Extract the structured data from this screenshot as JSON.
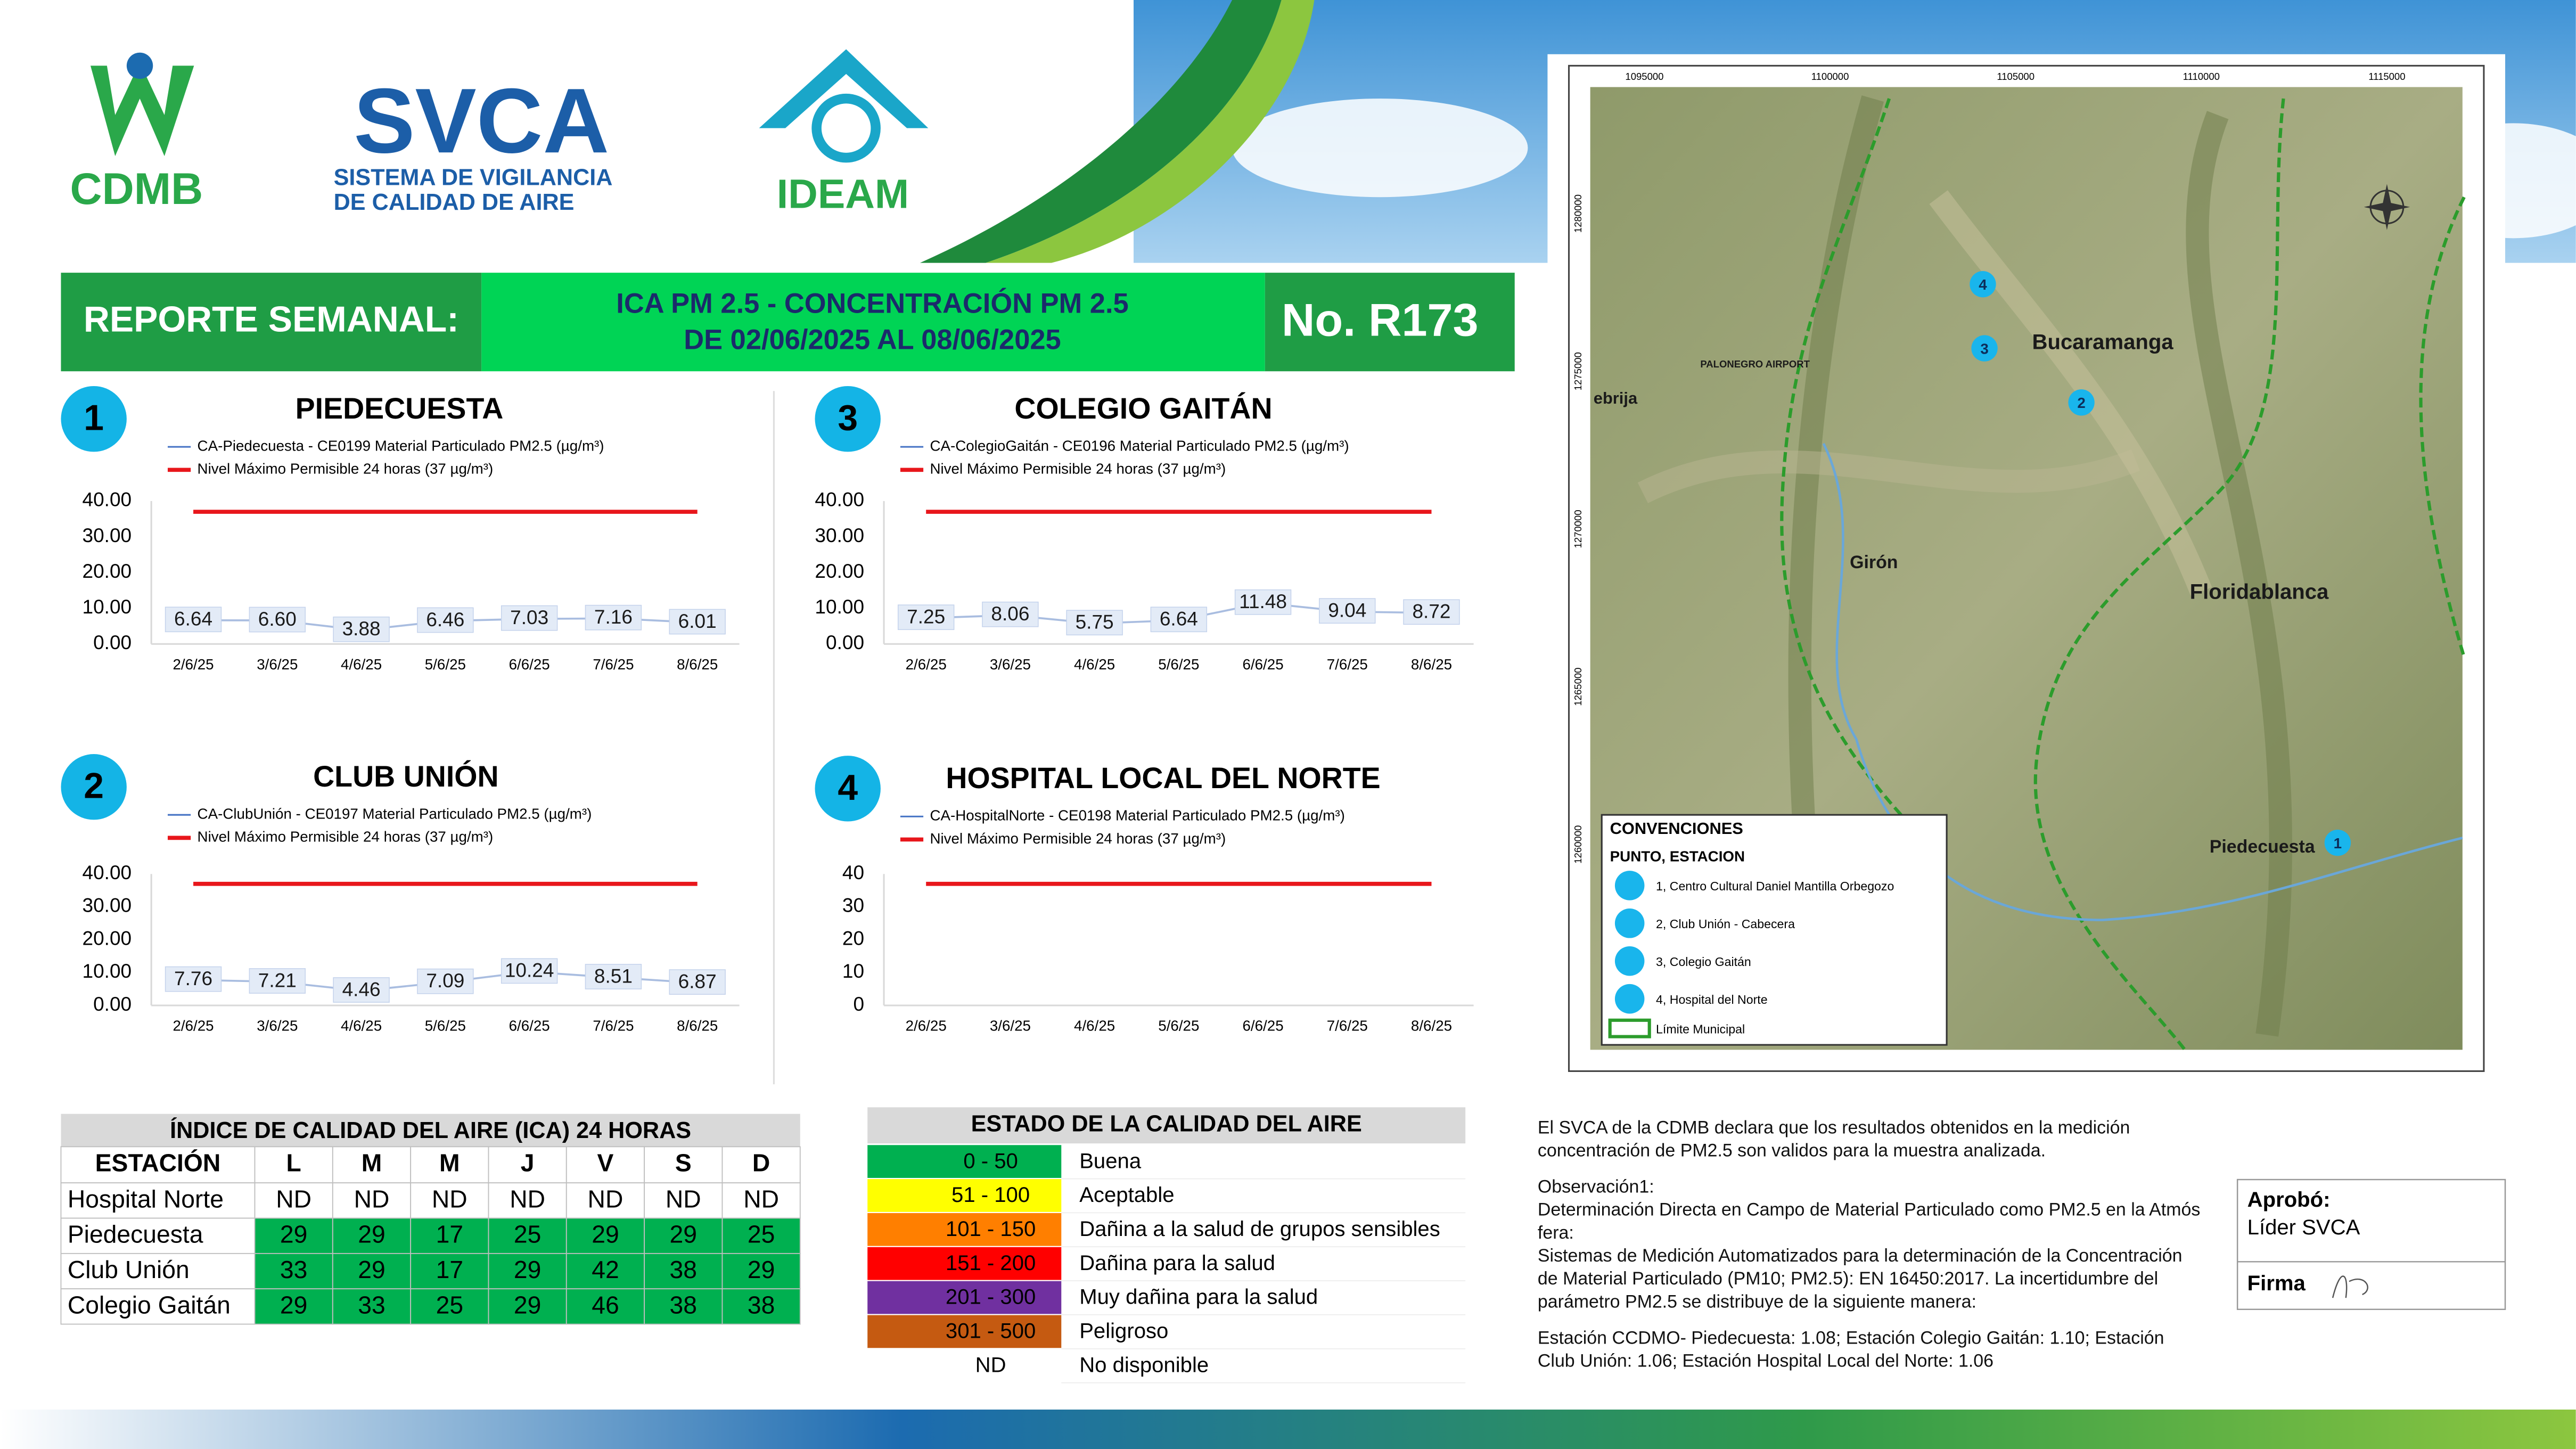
{
  "header": {
    "cdmb": "CDMB",
    "svca": "SVCA",
    "svca_line1": "SISTEMA DE VIGILANCIA",
    "svca_line2": "DE CALIDAD DE AIRE",
    "ideam": "IDEAM"
  },
  "title_bar": {
    "left": "REPORTE SEMANAL:",
    "center_line1": "ICA PM 2.5 - CONCENTRACIÓN PM 2.5",
    "center_line2": "DE 02/06/2025 AL 08/06/2025",
    "report_number": "No. R173"
  },
  "chart_data": [
    {
      "type": "line",
      "number": "1",
      "title": "PIEDECUESTA",
      "categories": [
        "2/6/25",
        "3/6/25",
        "4/6/25",
        "5/6/25",
        "6/6/25",
        "7/6/25",
        "8/6/25"
      ],
      "series": [
        {
          "name": "CA-Piedecuesta - CE0199 Material Particulado PM2.5 (µg/m³)",
          "color": "#4472c4",
          "values": [
            6.64,
            6.6,
            3.88,
            6.46,
            7.03,
            7.16,
            6.01
          ],
          "value_labels": [
            "6.64",
            "6.60",
            "3.88",
            "6.46",
            "7.03",
            "7.16",
            "6.01"
          ]
        },
        {
          "name": "Nivel Máximo Permisible 24 horas (37 µg/m³)",
          "color": "#e8161b",
          "values": [
            37,
            37,
            37,
            37,
            37,
            37,
            37
          ]
        }
      ],
      "ylim": [
        0,
        40
      ],
      "yticks": [
        {
          "value": 0,
          "label": "0.00"
        },
        {
          "value": 10,
          "label": "10.00"
        },
        {
          "value": 20,
          "label": "20.00"
        },
        {
          "value": 30,
          "label": "30.00"
        },
        {
          "value": 40,
          "label": "40.00"
        }
      ],
      "grid": false
    },
    {
      "type": "line",
      "number": "2",
      "title": "CLUB UNIÓN",
      "categories": [
        "2/6/25",
        "3/6/25",
        "4/6/25",
        "5/6/25",
        "6/6/25",
        "7/6/25",
        "8/6/25"
      ],
      "series": [
        {
          "name": "CA-ClubUnión - CE0197 Material Particulado PM2.5 (µg/m³)",
          "color": "#4472c4",
          "values": [
            7.76,
            7.21,
            4.46,
            7.09,
            10.24,
            8.51,
            6.87
          ],
          "value_labels": [
            "7.76",
            "7.21",
            "4.46",
            "7.09",
            "10.24",
            "8.51",
            "6.87"
          ]
        },
        {
          "name": "Nivel Máximo Permisible 24 horas (37 µg/m³)",
          "color": "#e8161b",
          "values": [
            37,
            37,
            37,
            37,
            37,
            37,
            37
          ]
        }
      ],
      "ylim": [
        0,
        40
      ],
      "yticks": [
        {
          "value": 0,
          "label": "0.00"
        },
        {
          "value": 10,
          "label": "10.00"
        },
        {
          "value": 20,
          "label": "20.00"
        },
        {
          "value": 30,
          "label": "30.00"
        },
        {
          "value": 40,
          "label": "40.00"
        }
      ],
      "grid": false
    },
    {
      "type": "line",
      "number": "3",
      "title": "COLEGIO GAITÁN",
      "categories": [
        "2/6/25",
        "3/6/25",
        "4/6/25",
        "5/6/25",
        "6/6/25",
        "7/6/25",
        "8/6/25"
      ],
      "series": [
        {
          "name": "CA-ColegioGaitán  - CE0196 Material Particulado PM2.5 (µg/m³)",
          "color": "#4472c4",
          "values": [
            7.25,
            8.06,
            5.75,
            6.64,
            11.48,
            9.04,
            8.72
          ],
          "value_labels": [
            "7.25",
            "8.06",
            "5.75",
            "6.64",
            "11.48",
            "9.04",
            "8.72"
          ]
        },
        {
          "name": "Nivel Máximo Permisible 24 horas (37 µg/m³)",
          "color": "#e8161b",
          "values": [
            37,
            37,
            37,
            37,
            37,
            37,
            37
          ]
        }
      ],
      "ylim": [
        0,
        40
      ],
      "yticks": [
        {
          "value": 0,
          "label": "0.00"
        },
        {
          "value": 10,
          "label": "10.00"
        },
        {
          "value": 20,
          "label": "20.00"
        },
        {
          "value": 30,
          "label": "30.00"
        },
        {
          "value": 40,
          "label": "40.00"
        }
      ],
      "grid": false
    },
    {
      "type": "line",
      "number": "4",
      "title": "HOSPITAL LOCAL DEL NORTE",
      "categories": [
        "2/6/25",
        "3/6/25",
        "4/6/25",
        "5/6/25",
        "6/6/25",
        "7/6/25",
        "8/6/25"
      ],
      "series": [
        {
          "name": "CA-HospitalNorte - CE0198 Material Particulado PM2.5 (µg/m³)",
          "color": "#4472c4",
          "values": [
            null,
            null,
            null,
            null,
            null,
            null,
            null
          ]
        },
        {
          "name": "Nivel Máximo Permisible 24 horas (37 µg/m³)",
          "color": "#e8161b",
          "values": [
            37,
            37,
            37,
            37,
            37,
            37,
            37
          ]
        }
      ],
      "ylim": [
        0,
        40
      ],
      "yticks": [
        0,
        10,
        20,
        30,
        40
      ],
      "grid": false
    }
  ],
  "ica_table": {
    "title": "ÍNDICE DE CALIDAD DEL AIRE (ICA) 24 HORAS",
    "columns": [
      "ESTACIÓN",
      "L",
      "M",
      "M",
      "J",
      "V",
      "S",
      "D"
    ],
    "rows": [
      [
        "Hospital Norte",
        "ND",
        "ND",
        "ND",
        "ND",
        "ND",
        "ND",
        "ND"
      ],
      [
        "Piedecuesta",
        29,
        29,
        17,
        25,
        29,
        29,
        25
      ],
      [
        "Club Unión",
        33,
        29,
        17,
        29,
        42,
        38,
        29
      ],
      [
        "Colegio Gaitán",
        29,
        33,
        25,
        29,
        46,
        38,
        38
      ]
    ]
  },
  "status_table": {
    "title": "ESTADO DE LA CALIDAD DEL AIRE",
    "rows": [
      {
        "range": "0 - 50",
        "label": "Buena",
        "color": "#00b050"
      },
      {
        "range": "51 - 100",
        "label": "Aceptable",
        "color": "#ffff00"
      },
      {
        "range": "101 - 150",
        "label": "Dañina a la salud de grupos sensibles",
        "color": "#ff7f00"
      },
      {
        "range": "151 - 200",
        "label": "Dañina para la salud",
        "color": "#ff0000"
      },
      {
        "range": "201 - 300",
        "label": "Muy dañina para la salud",
        "color": "#7030a0"
      },
      {
        "range": "301 - 500",
        "label": "Peligroso",
        "color": "#c55a11"
      },
      {
        "range": "ND",
        "label": "No disponible"
      }
    ]
  },
  "notes": [
    "El SVCA  de la CDMB declara que los resultados obtenidos en la medición",
    "concentración de PM2.5 son validos para la muestra  analizada.",
    "Observación1:",
    "Determinación Directa en Campo de Material Particulado como PM2.5 en la Atmós",
    "fera:",
    "Sistemas de Medición Automatizados para la  determinación de la Concentración",
    "de Material Particulado (PM10;  PM2.5): EN 16450:2017. La incertidumbre del",
    "parámetro PM2.5 se distribuye de la siguiente manera:",
    "Estación CCDMO- Piedecuesta: 1.08; Estación Colegio Gaitán: 1.10; Estación",
    "Club Unión: 1.06; Estación Hospital Local del Norte: 1.06"
  ],
  "approval": {
    "approved_label": "Aprobó:",
    "approver": "Líder SVCA",
    "signature_label": "Firma"
  },
  "map": {
    "x_coords": [
      "1095000",
      "1100000",
      "1105000",
      "1110000",
      "1115000"
    ],
    "y_coords": [
      "1280000",
      "1275000",
      "1270000",
      "1265000",
      "1260000"
    ],
    "places": [
      "Bucaramanga",
      "Girón",
      "Floridablanca",
      "Piedecuesta",
      "ebrija",
      "PALONEGRO AIRPORT"
    ],
    "stations": [
      "1",
      "2",
      "3",
      "4"
    ],
    "legend": {
      "title": "CONVENCIONES",
      "subtitle": "PUNTO, ESTACION",
      "items": [
        "1, Centro Cultural Daniel Mantilla Orbegozo",
        "2, Club Unión - Cabecera",
        "3, Colegio Gaitán",
        "4, Hospital del Norte"
      ],
      "boundary": "Límite Municipal"
    }
  }
}
